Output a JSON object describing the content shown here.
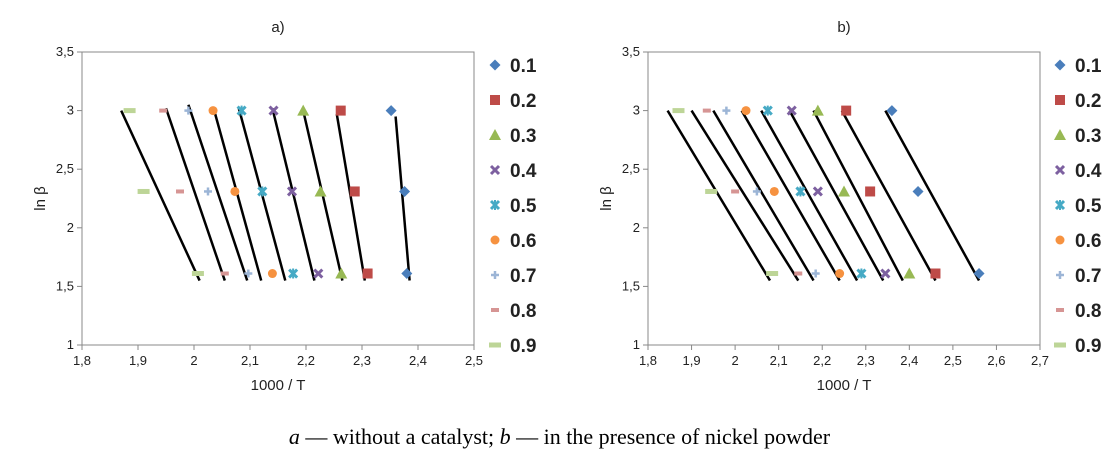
{
  "chart_data": [
    {
      "type": "scatter",
      "title": "a)",
      "xlabel": "1000 / T",
      "ylabel": "ln β",
      "xlim": [
        1.8,
        2.5
      ],
      "ylim": [
        1,
        3.5
      ],
      "xticks": [
        "1,8",
        "1,9",
        "2",
        "2,1",
        "2,2",
        "2,3",
        "2,4",
        "2,5"
      ],
      "yticks": [
        "1",
        "1,5",
        "2",
        "2,5",
        "3",
        "3,5"
      ],
      "grid": false,
      "legend_position": "right",
      "series": [
        {
          "name": "0.1",
          "marker": "diamond",
          "color": "#4a7ebb",
          "x": [
            2.38,
            2.376,
            2.352
          ],
          "y": [
            1.61,
            2.31,
            3.0
          ]
        },
        {
          "name": "0.2",
          "marker": "square",
          "color": "#be4b48",
          "x": [
            2.31,
            2.287,
            2.262
          ],
          "y": [
            1.61,
            2.31,
            3.0
          ]
        },
        {
          "name": "0.3",
          "marker": "triangle",
          "color": "#98b954",
          "x": [
            2.263,
            2.226,
            2.195
          ],
          "y": [
            1.61,
            2.31,
            3.0
          ]
        },
        {
          "name": "0.4",
          "marker": "x",
          "color": "#7d60a0",
          "x": [
            2.222,
            2.175,
            2.142
          ],
          "y": [
            1.61,
            2.31,
            3.0
          ]
        },
        {
          "name": "0.5",
          "marker": "star",
          "color": "#46aac5",
          "x": [
            2.177,
            2.122,
            2.085
          ],
          "y": [
            1.61,
            2.31,
            3.0
          ]
        },
        {
          "name": "0.6",
          "marker": "circle",
          "color": "#f69240",
          "x": [
            2.14,
            2.073,
            2.034
          ],
          "y": [
            1.61,
            2.31,
            3.0
          ]
        },
        {
          "name": "0.7",
          "marker": "plus",
          "color": "#9cb5d6",
          "x": [
            2.097,
            2.025,
            1.99
          ],
          "y": [
            1.61,
            2.31,
            3.0
          ]
        },
        {
          "name": "0.8",
          "marker": "dash",
          "color": "#d69594",
          "x": [
            2.055,
            1.975,
            1.945
          ],
          "y": [
            1.61,
            2.31,
            3.0
          ]
        },
        {
          "name": "0.9",
          "marker": "longdash",
          "color": "#bdd597",
          "x": [
            2.007,
            1.91,
            1.885
          ],
          "y": [
            1.61,
            2.31,
            3.0
          ]
        }
      ],
      "fit_lines": [
        {
          "x": [
            2.385,
            2.36
          ],
          "y": [
            1.55,
            2.95
          ]
        },
        {
          "x": [
            2.305,
            2.255
          ],
          "y": [
            1.55,
            2.97
          ]
        },
        {
          "x": [
            2.265,
            2.195
          ],
          "y": [
            1.55,
            3.0
          ]
        },
        {
          "x": [
            2.215,
            2.14
          ],
          "y": [
            1.55,
            3.02
          ]
        },
        {
          "x": [
            2.163,
            2.08
          ],
          "y": [
            1.55,
            3.02
          ]
        },
        {
          "x": [
            2.12,
            2.035
          ],
          "y": [
            1.55,
            3.02
          ]
        },
        {
          "x": [
            2.095,
            1.99
          ],
          "y": [
            1.55,
            3.05
          ]
        },
        {
          "x": [
            2.055,
            1.95
          ],
          "y": [
            1.55,
            3.02
          ]
        },
        {
          "x": [
            2.01,
            1.87
          ],
          "y": [
            1.55,
            3.0
          ]
        }
      ]
    },
    {
      "type": "scatter",
      "title": "b)",
      "xlabel": "1000 / T",
      "ylabel": "ln β",
      "xlim": [
        1.8,
        2.7
      ],
      "ylim": [
        1,
        3.5
      ],
      "xticks": [
        "1,8",
        "1,9",
        "2",
        "2,1",
        "2,2",
        "2,3",
        "2,4",
        "2,5",
        "2,6",
        "2,7"
      ],
      "yticks": [
        "1",
        "1,5",
        "2",
        "2,5",
        "3",
        "3,5"
      ],
      "grid": false,
      "legend_position": "right",
      "series": [
        {
          "name": "0.1",
          "marker": "diamond",
          "color": "#4a7ebb",
          "x": [
            2.56,
            2.42,
            2.36
          ],
          "y": [
            1.61,
            2.31,
            3.0
          ]
        },
        {
          "name": "0.2",
          "marker": "square",
          "color": "#be4b48",
          "x": [
            2.46,
            2.31,
            2.255
          ],
          "y": [
            1.61,
            2.31,
            3.0
          ]
        },
        {
          "name": "0.3",
          "marker": "triangle",
          "color": "#98b954",
          "x": [
            2.4,
            2.25,
            2.19
          ],
          "y": [
            1.61,
            2.31,
            3.0
          ]
        },
        {
          "name": "0.4",
          "marker": "x",
          "color": "#7d60a0",
          "x": [
            2.345,
            2.19,
            2.13
          ],
          "y": [
            1.61,
            2.31,
            3.0
          ]
        },
        {
          "name": "0.5",
          "marker": "star",
          "color": "#46aac5",
          "x": [
            2.29,
            2.15,
            2.075
          ],
          "y": [
            1.61,
            2.31,
            3.0
          ]
        },
        {
          "name": "0.6",
          "marker": "circle",
          "color": "#f69240",
          "x": [
            2.24,
            2.09,
            2.025
          ],
          "y": [
            1.61,
            2.31,
            3.0
          ]
        },
        {
          "name": "0.7",
          "marker": "plus",
          "color": "#9cb5d6",
          "x": [
            2.185,
            2.05,
            1.98
          ],
          "y": [
            1.61,
            2.31,
            3.0
          ]
        },
        {
          "name": "0.8",
          "marker": "dash",
          "color": "#d69594",
          "x": [
            2.145,
            2.0,
            1.935
          ],
          "y": [
            1.61,
            2.31,
            3.0
          ]
        },
        {
          "name": "0.9",
          "marker": "longdash",
          "color": "#bdd597",
          "x": [
            2.085,
            1.945,
            1.87
          ],
          "y": [
            1.61,
            2.31,
            3.0
          ]
        }
      ],
      "fit_lines": [
        {
          "x": [
            2.56,
            2.345
          ],
          "y": [
            1.55,
            3.0
          ]
        },
        {
          "x": [
            2.46,
            2.245
          ],
          "y": [
            1.55,
            3.0
          ]
        },
        {
          "x": [
            2.385,
            2.18
          ],
          "y": [
            1.55,
            3.0
          ]
        },
        {
          "x": [
            2.34,
            2.125
          ],
          "y": [
            1.55,
            3.0
          ]
        },
        {
          "x": [
            2.28,
            2.06
          ],
          "y": [
            1.55,
            3.0
          ]
        },
        {
          "x": [
            2.24,
            2.015
          ],
          "y": [
            1.55,
            3.0
          ]
        },
        {
          "x": [
            2.18,
            1.95
          ],
          "y": [
            1.55,
            3.0
          ]
        },
        {
          "x": [
            2.145,
            1.9
          ],
          "y": [
            1.55,
            3.0
          ]
        },
        {
          "x": [
            2.08,
            1.845
          ],
          "y": [
            1.55,
            3.0
          ]
        }
      ]
    }
  ],
  "caption": {
    "a_letter": "a",
    "a_text": " — without a catalyst; ",
    "b_letter": "b",
    "b_text": " — in the presence of nickel powder"
  }
}
